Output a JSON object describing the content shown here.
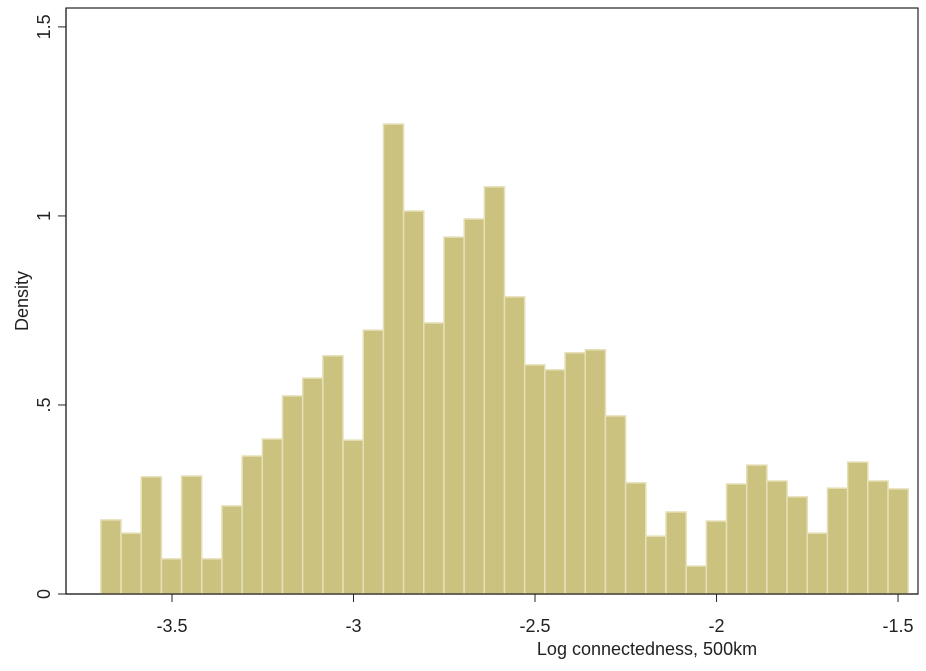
{
  "chart_data": {
    "type": "histogram",
    "x_label": "Log connectedness, 500km",
    "y_label": "Density",
    "color": "#cbc27f",
    "edge_color": "#e6e0b8",
    "bins": [
      -3.696,
      -3.6404,
      -3.5848,
      -3.5292,
      -3.4736,
      -3.418,
      -3.3624,
      -3.3068,
      -3.2512,
      -3.1956,
      -3.14,
      -3.0844,
      -3.0288,
      -2.9732,
      -2.9176,
      -2.862,
      -2.8064,
      -2.7508,
      -2.6952,
      -2.6396,
      -2.584,
      -2.5284,
      -2.4728,
      -2.4172,
      -2.3616,
      -2.306,
      -2.2504,
      -2.1948,
      -2.1392,
      -2.0836,
      -2.028,
      -1.9724,
      -1.9168,
      -1.8612,
      -1.8056,
      -1.75,
      -1.6944,
      -1.6388,
      -1.5832,
      -1.5276,
      -1.472
    ],
    "values": [
      0.196,
      0.161,
      0.31,
      0.093,
      0.312,
      0.093,
      0.233,
      0.365,
      0.41,
      0.524,
      0.571,
      0.63,
      0.407,
      0.698,
      1.243,
      1.013,
      0.717,
      0.944,
      0.992,
      1.077,
      0.786,
      0.606,
      0.593,
      0.638,
      0.646,
      0.471,
      0.294,
      0.153,
      0.217,
      0.074,
      0.193,
      0.291,
      0.341,
      0.299,
      0.257,
      0.161,
      0.28,
      0.349,
      0.299,
      0.278
    ],
    "xlim": [
      -3.792,
      -1.445
    ],
    "ylim": [
      0,
      1.55
    ],
    "xticks": [
      -3.5,
      -3,
      -2.5,
      -2,
      -1.5
    ],
    "yticks": [
      0,
      {
        "value": 0.5,
        "label": ".5"
      },
      1,
      1.5
    ]
  }
}
